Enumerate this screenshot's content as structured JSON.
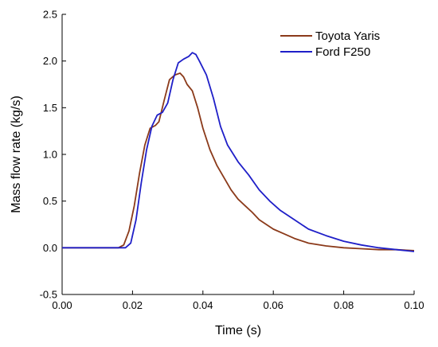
{
  "chart_data": {
    "type": "line",
    "xlabel": "Time (s)",
    "ylabel": "Mass flow rate (kg/s)",
    "xlim": [
      0.0,
      0.1
    ],
    "ylim": [
      -0.5,
      2.5
    ],
    "x_ticks": [
      "0.00",
      "0.02",
      "0.04",
      "0.06",
      "0.08",
      "0.10"
    ],
    "y_ticks": [
      "-0.5",
      "0.0",
      "0.5",
      "1.0",
      "1.5",
      "2.0",
      "2.5"
    ],
    "legend_position": "top-right",
    "grid": false,
    "series": [
      {
        "name": "Toyota Yaris",
        "color": "#8B3A1A",
        "x": [
          0.0,
          0.016,
          0.0175,
          0.019,
          0.0205,
          0.022,
          0.0235,
          0.025,
          0.0265,
          0.0275,
          0.029,
          0.0305,
          0.032,
          0.0335,
          0.0345,
          0.0355,
          0.037,
          0.0385,
          0.04,
          0.042,
          0.044,
          0.046,
          0.048,
          0.05,
          0.052,
          0.054,
          0.056,
          0.058,
          0.06,
          0.063,
          0.066,
          0.07,
          0.075,
          0.08,
          0.085,
          0.09,
          0.095,
          0.1
        ],
        "y": [
          0.0,
          0.0,
          0.03,
          0.18,
          0.45,
          0.8,
          1.1,
          1.28,
          1.31,
          1.35,
          1.58,
          1.8,
          1.85,
          1.87,
          1.83,
          1.75,
          1.68,
          1.5,
          1.28,
          1.05,
          0.88,
          0.75,
          0.62,
          0.52,
          0.45,
          0.38,
          0.3,
          0.25,
          0.2,
          0.15,
          0.1,
          0.05,
          0.02,
          0.0,
          -0.01,
          -0.02,
          -0.02,
          -0.03
        ]
      },
      {
        "name": "Ford F250",
        "color": "#1F1FC8",
        "x": [
          0.0,
          0.018,
          0.0195,
          0.021,
          0.0225,
          0.024,
          0.0255,
          0.027,
          0.0285,
          0.03,
          0.0315,
          0.033,
          0.0345,
          0.036,
          0.037,
          0.038,
          0.039,
          0.041,
          0.043,
          0.045,
          0.047,
          0.05,
          0.053,
          0.056,
          0.059,
          0.062,
          0.066,
          0.07,
          0.075,
          0.08,
          0.085,
          0.09,
          0.095,
          0.1
        ],
        "y": [
          0.0,
          0.0,
          0.05,
          0.3,
          0.7,
          1.05,
          1.3,
          1.42,
          1.45,
          1.55,
          1.8,
          1.98,
          2.02,
          2.05,
          2.09,
          2.07,
          2.0,
          1.85,
          1.6,
          1.3,
          1.1,
          0.92,
          0.78,
          0.62,
          0.5,
          0.4,
          0.3,
          0.2,
          0.13,
          0.07,
          0.03,
          0.0,
          -0.02,
          -0.04
        ]
      }
    ]
  }
}
